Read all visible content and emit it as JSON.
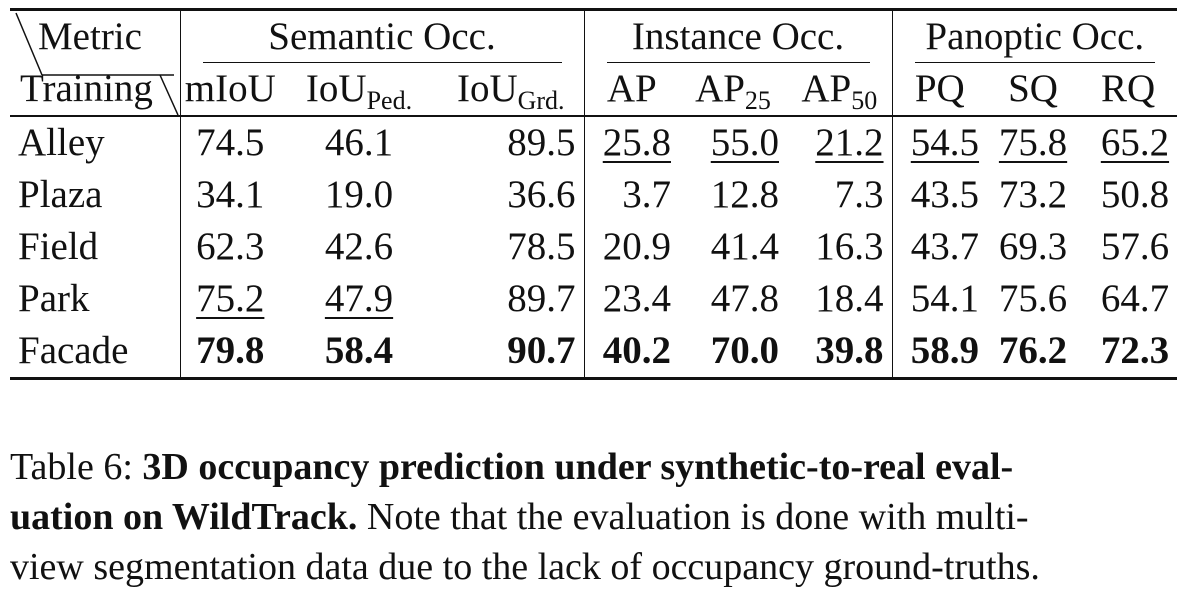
{
  "table": {
    "corner_top": "Metric",
    "corner_bottom": "Training",
    "groups": [
      "Semantic Occ.",
      "Instance Occ.",
      "Panoptic Occ."
    ],
    "metric_columns": [
      {
        "base": "mIoU",
        "sub": ""
      },
      {
        "base": "IoU",
        "sub": "Ped."
      },
      {
        "base": "IoU",
        "sub": "Grd."
      },
      {
        "base": "AP",
        "sub": ""
      },
      {
        "base": "AP",
        "sub": "25"
      },
      {
        "base": "AP",
        "sub": "50"
      },
      {
        "base": "PQ",
        "sub": ""
      },
      {
        "base": "SQ",
        "sub": ""
      },
      {
        "base": "RQ",
        "sub": ""
      }
    ],
    "rows": [
      {
        "name": "Alley",
        "values": [
          "74.5",
          "46.1",
          "89.5",
          "25.8",
          "55.0",
          "21.2",
          "54.5",
          "75.8",
          "65.2"
        ]
      },
      {
        "name": "Plaza",
        "values": [
          "34.1",
          "19.0",
          "36.6",
          "3.7",
          "12.8",
          "7.3",
          "43.5",
          "73.2",
          "50.8"
        ]
      },
      {
        "name": "Field",
        "values": [
          "62.3",
          "42.6",
          "78.5",
          "20.9",
          "41.4",
          "16.3",
          "43.7",
          "69.3",
          "57.6"
        ]
      },
      {
        "name": "Park",
        "values": [
          "75.2",
          "47.9",
          "89.7",
          "23.4",
          "47.8",
          "18.4",
          "54.1",
          "75.6",
          "64.7"
        ]
      },
      {
        "name": "Facade",
        "values": [
          "79.8",
          "58.4",
          "90.7",
          "40.2",
          "70.0",
          "39.8",
          "58.9",
          "76.2",
          "72.3"
        ]
      }
    ],
    "emphasis": {
      "bold": "best",
      "underline": "second best"
    }
  },
  "caption": {
    "line1_prefix": "Table 6: ",
    "line1_bold": "3D occupancy prediction under synthetic-to-real eval-",
    "line2_bold": "uation on WildTrack.",
    "line2_rest": " Note that the evaluation is done with multi-",
    "line3": "view segmentation data due to the lack of occupancy ground-truths."
  }
}
